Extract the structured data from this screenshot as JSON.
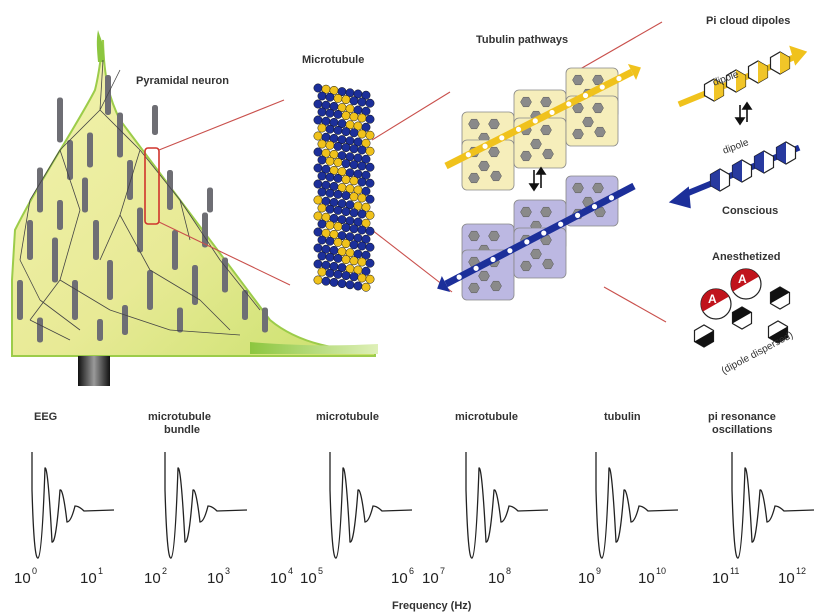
{
  "labels": {
    "pyramidal_neuron": "Pyramidal neuron",
    "microtubule": "Microtubule",
    "tubulin_pathways": "Tubulin pathways",
    "pi_cloud_dipoles": "Pi cloud dipoles",
    "dipole_top": "dipole",
    "dipole_bottom": "dipole",
    "conscious": "Conscious",
    "anesthetized": "Anesthetized",
    "dipole_dispersed": "(dipole dispersed)",
    "anesthetic_marker": "A"
  },
  "colors": {
    "neuron_fill": "#ecec9a",
    "neuron_edge_green": "#88c43c",
    "dendrite_gray": "#6e6e74",
    "tubulin_blue": "#1c2f9a",
    "tubulin_yellow": "#f0c21c",
    "pathway_yellow_block": "#f6eebb",
    "pathway_purple_block": "#bcb8e2",
    "anesthetic_red": "#c0141c",
    "connector_red": "#c63a3a"
  },
  "scales": [
    {
      "title_line1": "EEG",
      "title_line2": "",
      "tick_left": "10",
      "exp_left": "0",
      "tick_right": "10",
      "exp_right": "1"
    },
    {
      "title_line1": "microtubule",
      "title_line2": "bundle",
      "tick_left": "10",
      "exp_left": "2",
      "tick_right": "10",
      "exp_right": "3"
    },
    {
      "title_line1": "microtubule",
      "title_line2": "",
      "tick_left": "10",
      "exp_left": "5",
      "tick_right": "10",
      "exp_right": "6"
    },
    {
      "title_line1": "microtubule",
      "title_line2": "",
      "tick_left": "10",
      "exp_left": "7",
      "tick_right": "10",
      "exp_right": "8"
    },
    {
      "title_line1": "tubulin",
      "title_line2": "",
      "tick_left": "10",
      "exp_left": "9",
      "tick_right": "10",
      "exp_right": "10"
    },
    {
      "title_line1": "pi resonance",
      "title_line2": "oscillations",
      "tick_left": "10",
      "exp_left": "11",
      "tick_right": "10",
      "exp_right": "12"
    }
  ],
  "extra_tick": {
    "base": "10",
    "exp": "4"
  },
  "axis_title": "Frequency (Hz)"
}
